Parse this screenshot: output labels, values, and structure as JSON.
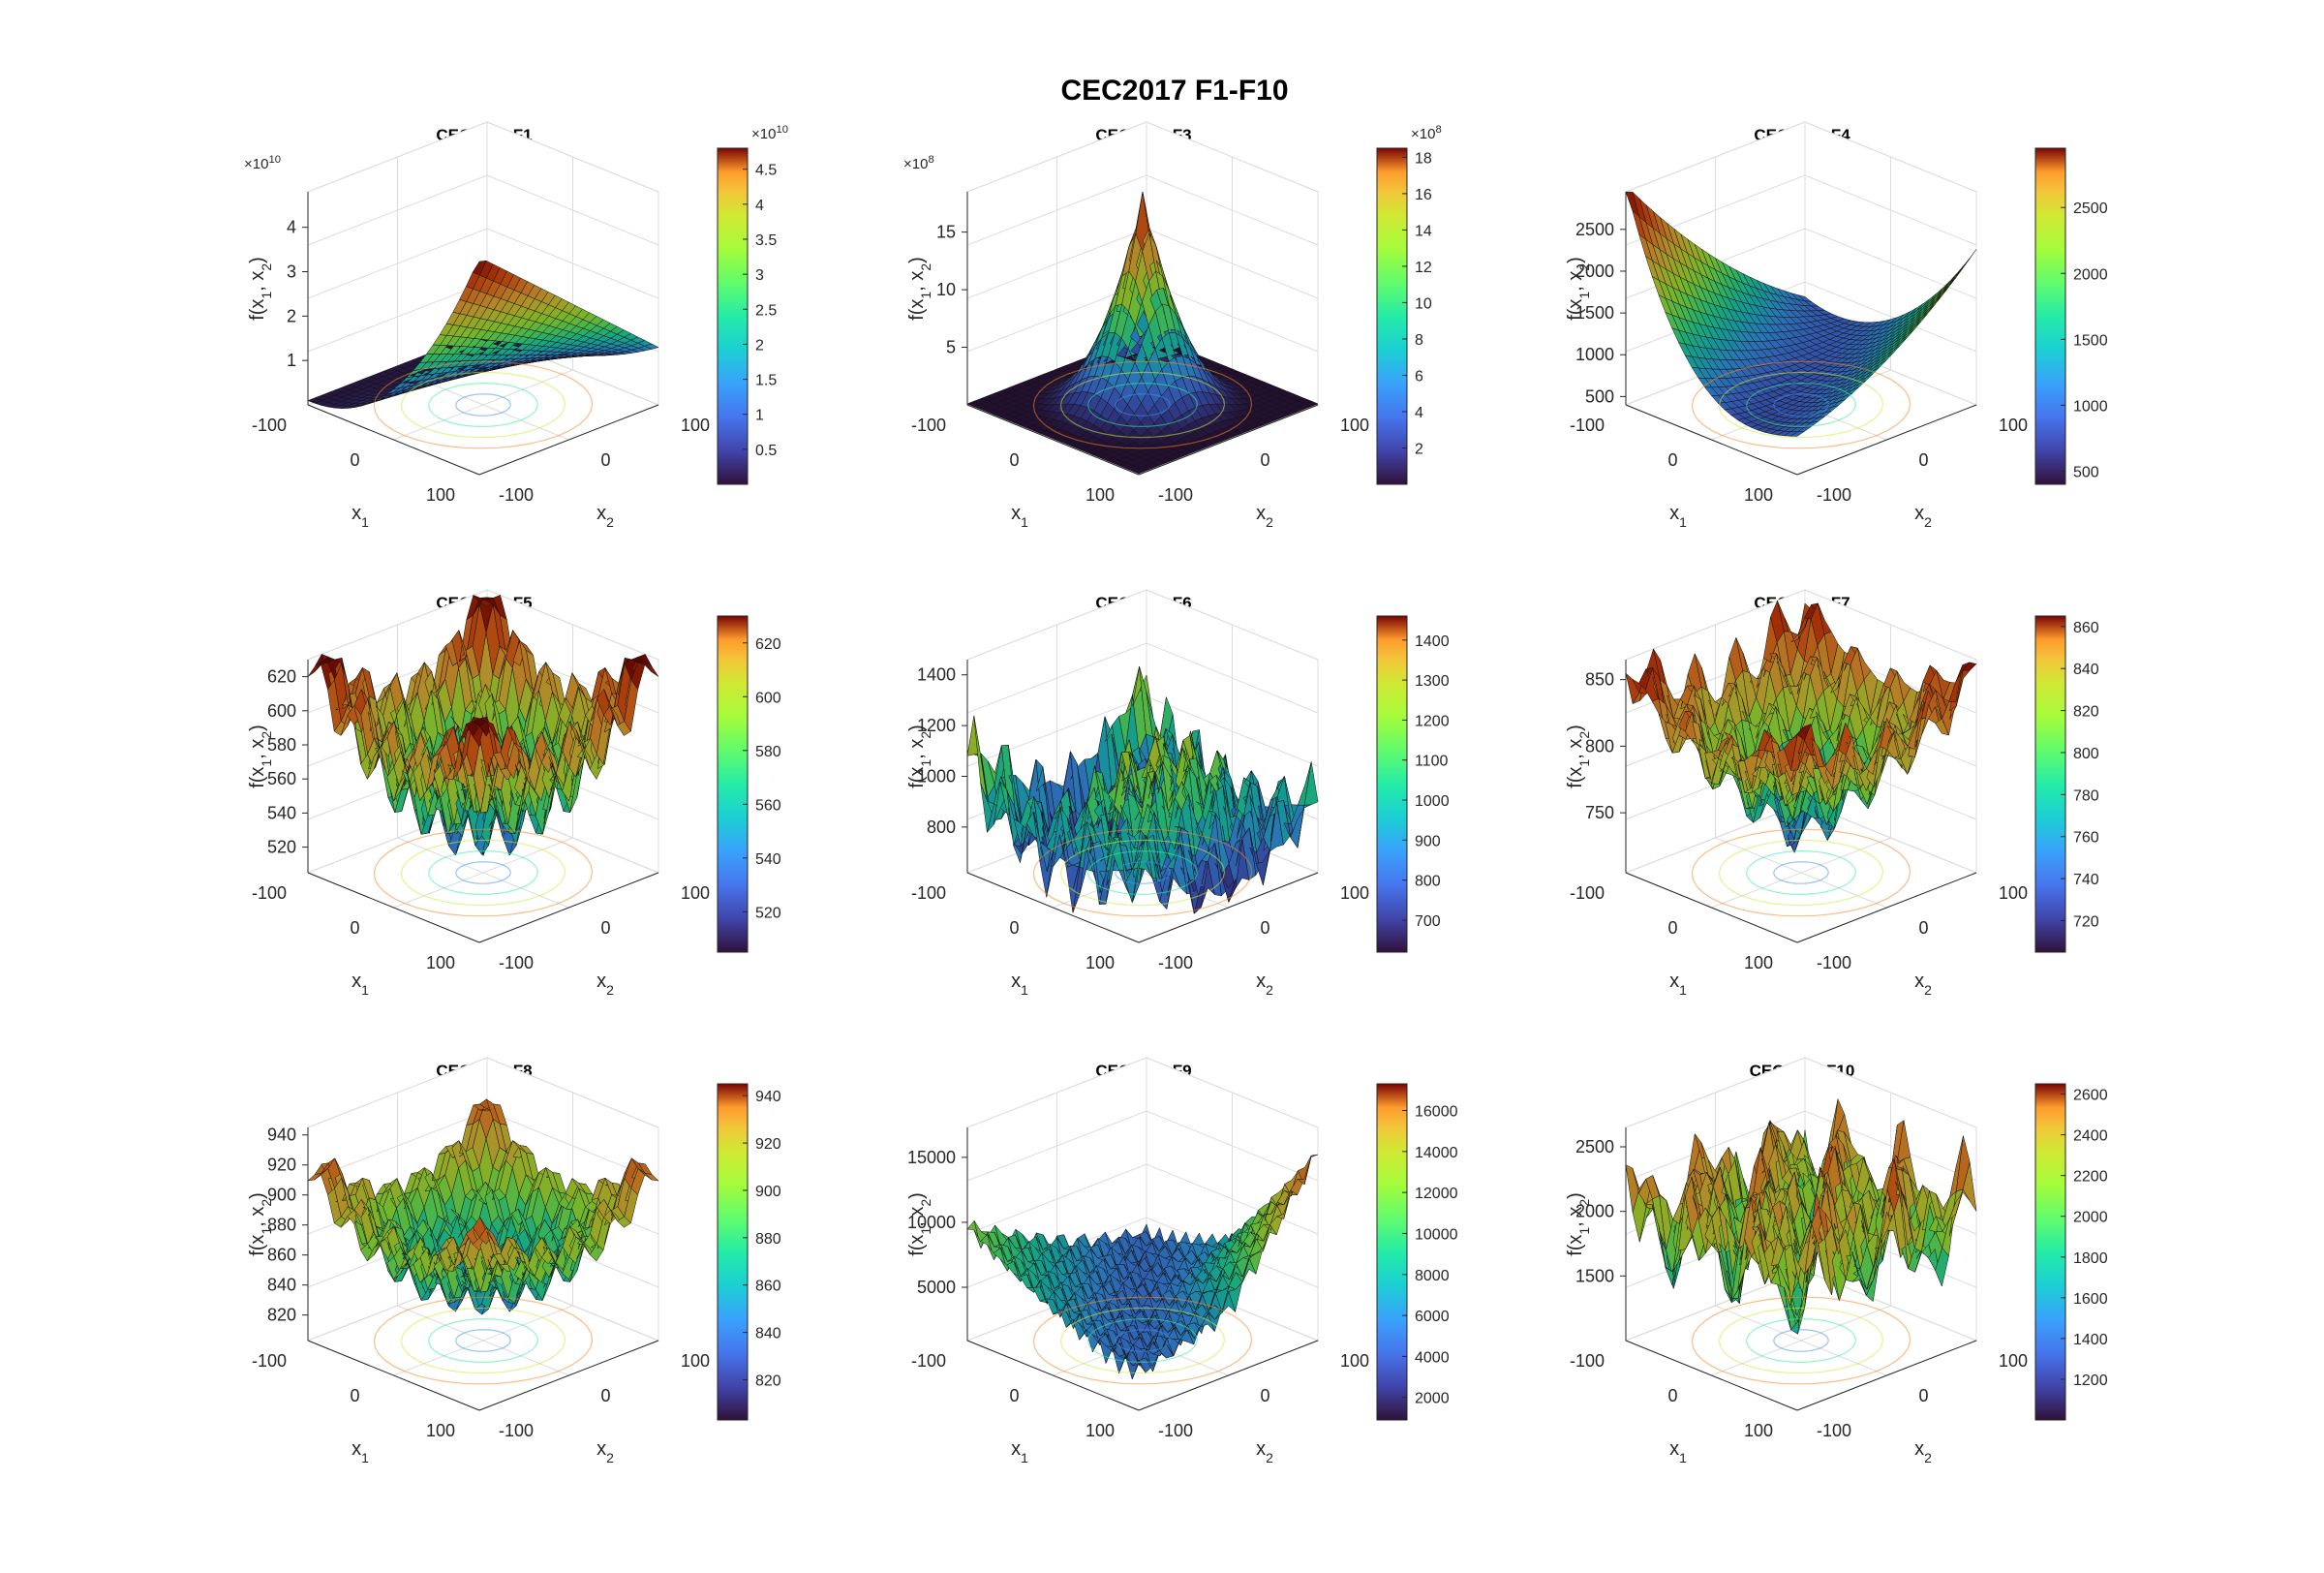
{
  "figure": {
    "title": "CEC2017 F1-F10"
  },
  "chart_data": [
    {
      "id": "F1",
      "type": "surface",
      "title": "CEC2017-F1",
      "xlabel": "x_1",
      "ylabel": "x_2",
      "zlabel": "f(x_1, x_2)",
      "xlim": [
        -100,
        100
      ],
      "ylim": [
        -100,
        100
      ],
      "x_ticks": [
        "-100",
        "0",
        "100"
      ],
      "y_ticks": [
        "-100",
        "0",
        "100"
      ],
      "z_ticks": [
        "1",
        "2",
        "3",
        "4"
      ],
      "z_exponent": "10",
      "z_range": [
        0,
        4.8
      ],
      "colorbar_ticks": [
        "0.5",
        "1",
        "1.5",
        "2",
        "2.5",
        "3",
        "3.5",
        "4",
        "4.5"
      ],
      "colorbar_exponent": "10",
      "colorbar_range": [
        0,
        4.8
      ],
      "surface_kind": "bowl-tilted",
      "grid": true
    },
    {
      "id": "F3",
      "type": "surface",
      "title": "CEC2017-F3",
      "xlabel": "x_1",
      "ylabel": "x_2",
      "zlabel": "f(x_1, x_2)",
      "xlim": [
        -100,
        100
      ],
      "ylim": [
        -100,
        100
      ],
      "x_ticks": [
        "-100",
        "0",
        "100"
      ],
      "y_ticks": [
        "-100",
        "0",
        "100"
      ],
      "z_ticks": [
        "5",
        "10",
        "15"
      ],
      "z_exponent": "8",
      "z_range": [
        0,
        18.5
      ],
      "colorbar_ticks": [
        "2",
        "4",
        "6",
        "8",
        "10",
        "12",
        "14",
        "16",
        "18"
      ],
      "colorbar_exponent": "8",
      "colorbar_range": [
        0,
        18.5
      ],
      "surface_kind": "cusp",
      "grid": true
    },
    {
      "id": "F4",
      "type": "surface",
      "title": "CEC2017-F4",
      "xlabel": "x_1",
      "ylabel": "x_2",
      "zlabel": "f(x_1, x_2)",
      "xlim": [
        -100,
        100
      ],
      "ylim": [
        -100,
        100
      ],
      "x_ticks": [
        "-100",
        "0",
        "100"
      ],
      "y_ticks": [
        "-100",
        "0",
        "100"
      ],
      "z_ticks": [
        "500",
        "1000",
        "1500",
        "2000",
        "2500"
      ],
      "z_range": [
        400,
        2950
      ],
      "colorbar_ticks": [
        "500",
        "1000",
        "1500",
        "2000",
        "2500"
      ],
      "colorbar_range": [
        400,
        2950
      ],
      "surface_kind": "valley",
      "grid": true
    },
    {
      "id": "F5",
      "type": "surface",
      "title": "CEC2017-F5",
      "xlabel": "x_1",
      "ylabel": "x_2",
      "zlabel": "f(x_1, x_2)",
      "xlim": [
        -100,
        100
      ],
      "ylim": [
        -100,
        100
      ],
      "x_ticks": [
        "-100",
        "0",
        "100"
      ],
      "y_ticks": [
        "-100",
        "0",
        "100"
      ],
      "z_ticks": [
        "520",
        "540",
        "560",
        "580",
        "600",
        "620"
      ],
      "z_range": [
        505,
        630
      ],
      "colorbar_ticks": [
        "520",
        "540",
        "560",
        "580",
        "600",
        "620"
      ],
      "colorbar_range": [
        505,
        630
      ],
      "surface_kind": "rastrigin",
      "grid": true
    },
    {
      "id": "F6",
      "type": "surface",
      "title": "CEC2017-F6",
      "xlabel": "x_1",
      "ylabel": "x_2",
      "zlabel": "f(x_1, x_2)",
      "xlim": [
        -100,
        100
      ],
      "ylim": [
        -100,
        100
      ],
      "x_ticks": [
        "-100",
        "0",
        "100"
      ],
      "y_ticks": [
        "-100",
        "0",
        "100"
      ],
      "z_ticks": [
        "800",
        "1000",
        "1200",
        "1400"
      ],
      "z_range": [
        620,
        1460
      ],
      "colorbar_ticks": [
        "700",
        "800",
        "900",
        "1000",
        "1100",
        "1200",
        "1300",
        "1400"
      ],
      "colorbar_range": [
        620,
        1460
      ],
      "surface_kind": "noisy-ridge",
      "grid": true
    },
    {
      "id": "F7",
      "type": "surface",
      "title": "CEC2017-F7",
      "xlabel": "x_1",
      "ylabel": "x_2",
      "zlabel": "f(x_1, x_2)",
      "xlim": [
        -100,
        100
      ],
      "ylim": [
        -100,
        100
      ],
      "x_ticks": [
        "-100",
        "0",
        "100"
      ],
      "y_ticks": [
        "-100",
        "0",
        "100"
      ],
      "z_ticks": [
        "750",
        "800",
        "850"
      ],
      "z_range": [
        705,
        865
      ],
      "colorbar_ticks": [
        "720",
        "740",
        "760",
        "780",
        "800",
        "820",
        "840",
        "860"
      ],
      "colorbar_range": [
        705,
        865
      ],
      "surface_kind": "cone-rugged",
      "grid": true
    },
    {
      "id": "F8",
      "type": "surface",
      "title": "CEC2017-F8",
      "xlabel": "x_1",
      "ylabel": "x_2",
      "zlabel": "f(x_1, x_2)",
      "xlim": [
        -100,
        100
      ],
      "ylim": [
        -100,
        100
      ],
      "x_ticks": [
        "-100",
        "0",
        "100"
      ],
      "y_ticks": [
        "-100",
        "0",
        "100"
      ],
      "z_ticks": [
        "820",
        "840",
        "860",
        "880",
        "900",
        "920",
        "940"
      ],
      "z_range": [
        803,
        945
      ],
      "colorbar_ticks": [
        "820",
        "840",
        "860",
        "880",
        "900",
        "920",
        "940"
      ],
      "colorbar_range": [
        803,
        945
      ],
      "surface_kind": "rastrigin-low",
      "grid": true
    },
    {
      "id": "F9",
      "type": "surface",
      "title": "CEC2017-F9",
      "xlabel": "x_1",
      "ylabel": "x_2",
      "zlabel": "f(x_1, x_2)",
      "xlim": [
        -100,
        100
      ],
      "ylim": [
        -100,
        100
      ],
      "x_ticks": [
        "-100",
        "0",
        "100"
      ],
      "y_ticks": [
        "-100",
        "0",
        "100"
      ],
      "z_ticks": [
        "5000",
        "10000",
        "15000"
      ],
      "z_range": [
        900,
        17300
      ],
      "colorbar_ticks": [
        "2000",
        "4000",
        "6000",
        "8000",
        "10000",
        "12000",
        "14000",
        "16000"
      ],
      "colorbar_range": [
        900,
        17300
      ],
      "surface_kind": "spiky-valley",
      "grid": true
    },
    {
      "id": "F10",
      "type": "surface",
      "title": "CEC2017-F10",
      "xlabel": "x_1",
      "ylabel": "x_2",
      "zlabel": "f(x_1, x_2)",
      "xlim": [
        -100,
        100
      ],
      "ylim": [
        -100,
        100
      ],
      "x_ticks": [
        "-100",
        "0",
        "100"
      ],
      "y_ticks": [
        "-100",
        "0",
        "100"
      ],
      "z_ticks": [
        "1500",
        "2000",
        "2500"
      ],
      "z_range": [
        1000,
        2650
      ],
      "colorbar_ticks": [
        "1200",
        "1400",
        "1600",
        "1800",
        "2000",
        "2200",
        "2400",
        "2600"
      ],
      "colorbar_range": [
        1000,
        2650
      ],
      "surface_kind": "schwefel",
      "grid": true
    }
  ]
}
